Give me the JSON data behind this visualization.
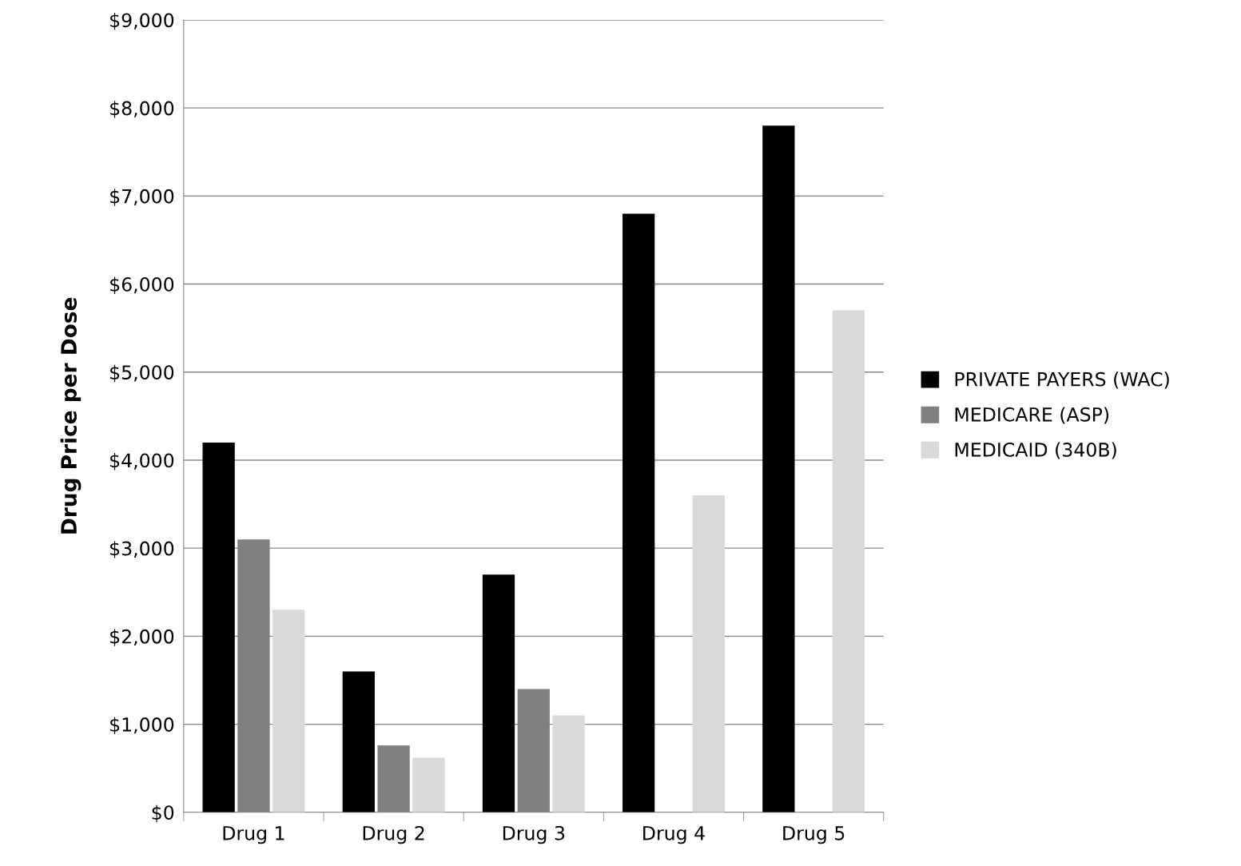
{
  "chart_data": {
    "type": "bar",
    "ylabel": "Drug Price per Dose",
    "categories": [
      "Drug 1",
      "Drug 2",
      "Drug 3",
      "Drug 4",
      "Drug 5"
    ],
    "series": [
      {
        "name": "PRIVATE PAYERS (WAC)",
        "color": "#000000",
        "values": [
          4200,
          1600,
          2700,
          6800,
          7800
        ]
      },
      {
        "name": "MEDICARE (ASP)",
        "color": "#808080",
        "values": [
          3100,
          760,
          1400,
          null,
          null
        ]
      },
      {
        "name": "MEDICAID (340B)",
        "color": "#d9d9d9",
        "values": [
          2300,
          620,
          1100,
          3600,
          5700
        ]
      }
    ],
    "ylim": [
      0,
      9000
    ],
    "yticks": [
      {
        "value": 0,
        "label": "$0"
      },
      {
        "value": 1000,
        "label": "$1,000"
      },
      {
        "value": 2000,
        "label": "$2,000"
      },
      {
        "value": 3000,
        "label": "$3,000"
      },
      {
        "value": 4000,
        "label": "$4,000"
      },
      {
        "value": 5000,
        "label": "$5,000"
      },
      {
        "value": 6000,
        "label": "$6,000"
      },
      {
        "value": 7000,
        "label": "$7,000"
      },
      {
        "value": 8000,
        "label": "$8,000"
      },
      {
        "value": 9000,
        "label": "$9,000"
      }
    ],
    "grid": "y",
    "legend": "right"
  }
}
